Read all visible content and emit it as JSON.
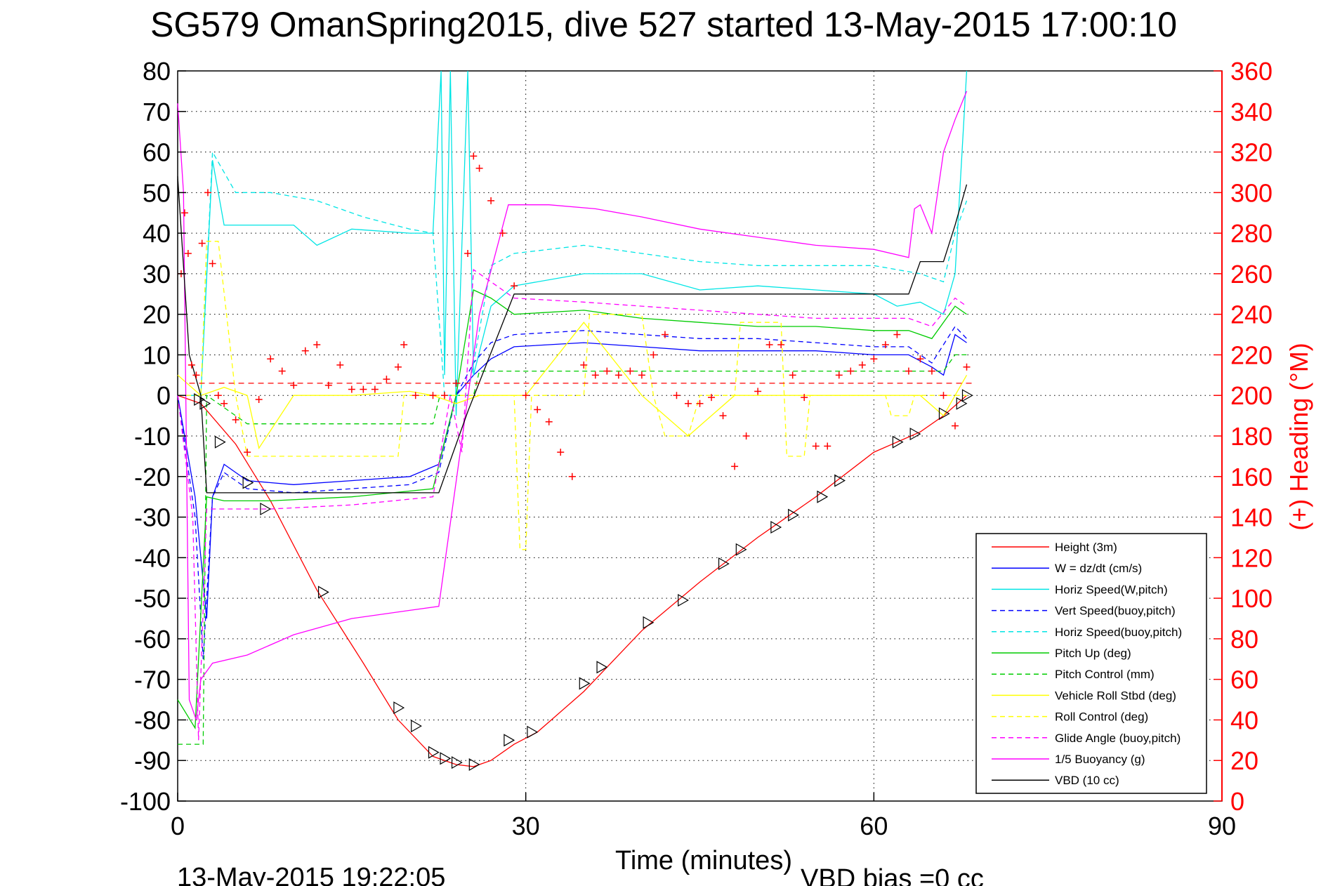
{
  "chart_data": {
    "type": "line",
    "title": "SG579 OmanSpring2015, dive 527 started 13-May-2015 17:00:10",
    "xlabel": "Time (minutes)",
    "ylabel_right": "(+) Heading (°M)",
    "xlim": [
      0,
      90
    ],
    "ylim_left": [
      -100,
      80
    ],
    "ylim_right": [
      0,
      360
    ],
    "x_ticks": [
      "0",
      "30",
      "60",
      "90"
    ],
    "y_ticks_left": [
      "80",
      "70",
      "60",
      "50",
      "40",
      "30",
      "20",
      "10",
      "0",
      "-10",
      "-20",
      "-30",
      "-40",
      "-50",
      "-60",
      "-70",
      "-80",
      "-90",
      "-100"
    ],
    "y_ticks_right": [
      "360",
      "340",
      "320",
      "300",
      "280",
      "260",
      "240",
      "220",
      "200",
      "180",
      "160",
      "140",
      "120",
      "100",
      "80",
      "60",
      "40",
      "20",
      "0"
    ],
    "grid": true,
    "legend_position": "bottom-right",
    "footer_left": "13-May-2015 19:22:05",
    "footer_right": "VBD bias =0 cc",
    "colors": {
      "right_axis": "#ff0000",
      "grid": "#000000"
    },
    "series": [
      {
        "name": "Height (3m)",
        "color": "#ff0000",
        "dash": "solid",
        "x": [
          0,
          2,
          5,
          8,
          12,
          16,
          19,
          22,
          24,
          25.5,
          27,
          29,
          31,
          35,
          40,
          45,
          50,
          55,
          60,
          64,
          66,
          68
        ],
        "y": [
          0,
          -2,
          -12,
          -26,
          -48,
          -66,
          -80,
          -89,
          -91,
          -91.5,
          -90,
          -86,
          -83,
          -73,
          -58,
          -46,
          -35,
          -25,
          -14,
          -9,
          -5,
          0
        ]
      },
      {
        "name": "W = dz/dt (cm/s)",
        "color": "#0000ff",
        "dash": "solid",
        "x": [
          0,
          1.5,
          2.5,
          3,
          4,
          6,
          10,
          15,
          20,
          22.5,
          24,
          25.5,
          27,
          29,
          35,
          40,
          45,
          50,
          55,
          60,
          63,
          65,
          66,
          67,
          68
        ],
        "y": [
          0,
          -25,
          -55,
          -25,
          -17,
          -21,
          -22,
          -21,
          -20,
          -17,
          0,
          5,
          9,
          12,
          13,
          12,
          11,
          11,
          11,
          10,
          10,
          7,
          5,
          15,
          13
        ]
      },
      {
        "name": "Horiz Speed(W,pitch)",
        "color": "#00e5e5",
        "dash": "solid",
        "x": [
          0,
          2,
          3,
          4,
          6,
          10,
          12,
          15,
          20,
          22,
          22.7,
          23,
          23.5,
          24,
          25,
          25.5,
          27,
          29,
          35,
          40,
          45,
          50,
          55,
          60,
          62,
          64,
          66,
          67,
          68
        ],
        "y": [
          0,
          0,
          58,
          42,
          42,
          42,
          37,
          41,
          40,
          40,
          80,
          5,
          80,
          -5,
          80,
          5,
          22,
          27,
          30,
          30,
          26,
          27,
          26,
          25,
          22,
          23,
          20,
          30,
          80
        ]
      },
      {
        "name": "Vert Speed(buoy,pitch)",
        "color": "#0000ff",
        "dash": "dashed",
        "x": [
          0,
          1.5,
          2.2,
          3,
          4,
          6,
          10,
          15,
          20,
          22.5,
          24,
          25.5,
          27,
          29,
          35,
          40,
          45,
          50,
          55,
          60,
          63,
          65,
          67,
          68
        ],
        "y": [
          0,
          -30,
          -65,
          -25,
          -19,
          -23,
          -24,
          -23,
          -22,
          -19,
          0,
          8,
          13,
          15,
          16,
          15,
          14,
          14,
          13,
          12,
          12,
          8,
          17,
          14
        ]
      },
      {
        "name": "Horiz Speed(buoy,pitch)",
        "color": "#00e5e5",
        "dash": "dashed",
        "x": [
          0,
          2,
          3,
          5,
          8,
          12,
          16,
          20,
          22,
          23,
          24,
          25,
          27,
          29,
          35,
          40,
          45,
          50,
          55,
          60,
          64,
          66,
          67,
          68
        ],
        "y": [
          0,
          0,
          60,
          50,
          50,
          48,
          44,
          41,
          40,
          0,
          0,
          0,
          32,
          35,
          37,
          35,
          33,
          32,
          32,
          32,
          30,
          28,
          40,
          48
        ]
      },
      {
        "name": "Pitch Up (deg)",
        "color": "#00cc00",
        "dash": "solid",
        "x": [
          0,
          1.5,
          2.5,
          4,
          8,
          15,
          22,
          24,
          25.5,
          27,
          29,
          35,
          40,
          45,
          50,
          55,
          60,
          63,
          65,
          67,
          68
        ],
        "y": [
          -75,
          -82,
          -25,
          -26,
          -26,
          -25,
          -23,
          0,
          26,
          24,
          20,
          21,
          19,
          18,
          17,
          17,
          16,
          16,
          14,
          22,
          20
        ]
      },
      {
        "name": "Pitch Control (mm)",
        "color": "#00cc00",
        "dash": "dashed",
        "x": [
          0,
          1,
          2.2,
          2.5,
          6,
          22,
          22.6,
          25.5,
          26,
          30,
          45,
          60,
          66,
          67,
          68
        ],
        "y": [
          -86,
          -86,
          -86,
          0,
          -7,
          -7,
          0,
          0,
          6,
          6,
          6,
          6,
          6,
          10,
          10
        ]
      },
      {
        "name": "Vehicle Roll Stbd (deg)",
        "color": "#ffff00",
        "dash": "solid",
        "x": [
          0,
          2,
          4,
          6,
          7,
          10,
          15,
          20,
          22,
          24,
          26,
          30,
          35,
          40,
          44,
          48,
          52,
          56,
          60,
          64,
          66,
          68
        ],
        "y": [
          5,
          0,
          2,
          0,
          -13,
          0,
          0,
          1,
          0,
          -2,
          0,
          0,
          18,
          0,
          -10,
          0,
          0,
          0,
          0,
          0,
          -5,
          5
        ]
      },
      {
        "name": "Roll Control (deg)",
        "color": "#ffff00",
        "dash": "dashed",
        "x": [
          0,
          2,
          2.5,
          3.5,
          5,
          6,
          7.5,
          19,
          19.5,
          20,
          29,
          29.5,
          30,
          30.5,
          35,
          35.5,
          36,
          40,
          41,
          42,
          44,
          45,
          48,
          48.5,
          52,
          52.5,
          54,
          54.5,
          61,
          61.5,
          63,
          63.5,
          68
        ],
        "y": [
          0,
          0,
          38,
          38,
          0,
          -15,
          -15,
          -15,
          0,
          0,
          0,
          -38,
          -38,
          0,
          0,
          20,
          20,
          20,
          0,
          -10,
          -10,
          0,
          0,
          18,
          18,
          -15,
          -15,
          0,
          0,
          -5,
          -5,
          0,
          0
        ]
      },
      {
        "name": "Glide Angle (buoy,pitch)",
        "color": "#ff00ff",
        "dash": "dashed",
        "x": [
          0,
          1.3,
          1.8,
          2.5,
          4,
          8,
          15,
          22,
          23.5,
          24.5,
          25.5,
          27,
          29,
          35,
          40,
          45,
          50,
          55,
          60,
          63,
          65,
          67,
          68
        ],
        "y": [
          0,
          -30,
          -85,
          -28,
          -28,
          -28,
          -27,
          -25,
          0,
          -14,
          31,
          28,
          24,
          23,
          22,
          21,
          20,
          19,
          19,
          19,
          17,
          24,
          22
        ]
      },
      {
        "name": "1/5 Buoyancy (g)",
        "color": "#ff00ff",
        "dash": "solid",
        "x": [
          0,
          0.5,
          1,
          1.6,
          2,
          3,
          6,
          10,
          15,
          20,
          22.5,
          26,
          28.5,
          32,
          36,
          40,
          45,
          50,
          55,
          60,
          63,
          63.5,
          64,
          65,
          66,
          67,
          68
        ],
        "y": [
          72,
          50,
          -75,
          -80,
          -70,
          -66,
          -64,
          -59,
          -55,
          -53,
          -52,
          20,
          47,
          47,
          46,
          44,
          41,
          39,
          37,
          36,
          34,
          46,
          47,
          40,
          60,
          68,
          75
        ]
      },
      {
        "name": "VBD (10 cc)",
        "color": "#000000",
        "dash": "solid",
        "x": [
          0,
          1,
          2,
          2.5,
          6,
          10,
          15,
          20,
          22.5,
          25,
          29,
          35,
          40,
          45,
          50,
          55,
          60,
          63,
          64,
          66,
          67,
          68
        ],
        "y": [
          54,
          10,
          0,
          -24,
          -24,
          -24,
          -24,
          -24,
          -24,
          -4,
          25,
          25,
          25,
          25,
          25,
          25,
          25,
          25,
          33,
          33,
          42,
          52
        ]
      }
    ],
    "heading_series": {
      "name": "(+) Heading",
      "color": "#ff0000",
      "marker": "+",
      "axis": "right",
      "reference_value": 206,
      "x": [
        0.3,
        0.6,
        0.9,
        1.2,
        1.6,
        2.1,
        2.6,
        3,
        3.5,
        4,
        5,
        6,
        7,
        8,
        9,
        10,
        11,
        12,
        13,
        14,
        15,
        16,
        17,
        18,
        19,
        19.5,
        20.5,
        22,
        23,
        24,
        25,
        25.5,
        26,
        27,
        28,
        29,
        30,
        31,
        32,
        33,
        34,
        35,
        36,
        37,
        38,
        39,
        40,
        41,
        42,
        43,
        44,
        45,
        46,
        47,
        48,
        49,
        50,
        51,
        52,
        53,
        54,
        55,
        56,
        57,
        58,
        59,
        60,
        61,
        62,
        63,
        64,
        65,
        66,
        67,
        68
      ],
      "y": [
        260,
        290,
        270,
        215,
        210,
        275,
        300,
        265,
        200,
        196,
        188,
        172,
        198,
        218,
        212,
        205,
        222,
        225,
        205,
        215,
        203,
        203,
        203,
        208,
        214,
        225,
        200,
        200,
        200,
        206,
        270,
        318,
        312,
        296,
        280,
        254,
        200,
        193,
        187,
        172,
        160,
        215,
        210,
        212,
        210,
        212,
        210,
        220,
        230,
        200,
        196,
        196,
        199,
        190,
        165,
        180,
        202,
        225,
        225,
        210,
        199,
        175,
        175,
        210,
        212,
        215,
        218,
        225,
        230,
        212,
        218,
        212,
        200,
        185,
        214
      ]
    },
    "triangle_markers": {
      "color": "#000000",
      "x": [
        1.8,
        2.3,
        3.6,
        6,
        7.5,
        12.5,
        19,
        20.5,
        22,
        23,
        24,
        25.5,
        28.5,
        30.5,
        35,
        36.5,
        40.5,
        43.5,
        47,
        48.5,
        51.5,
        53,
        55.5,
        57,
        62,
        63.5,
        66,
        67.5,
        68
      ],
      "y": [
        -1,
        -2,
        -11.5,
        -21.5,
        -28,
        -48.5,
        -77,
        -81.5,
        -88,
        -89.5,
        -90.5,
        -91,
        -85,
        -83,
        -71,
        -67,
        -56,
        -50.5,
        -41.5,
        -38,
        -32.5,
        -29.5,
        -25,
        -21,
        -11.5,
        -9.5,
        -4.5,
        -2,
        0
      ]
    }
  }
}
